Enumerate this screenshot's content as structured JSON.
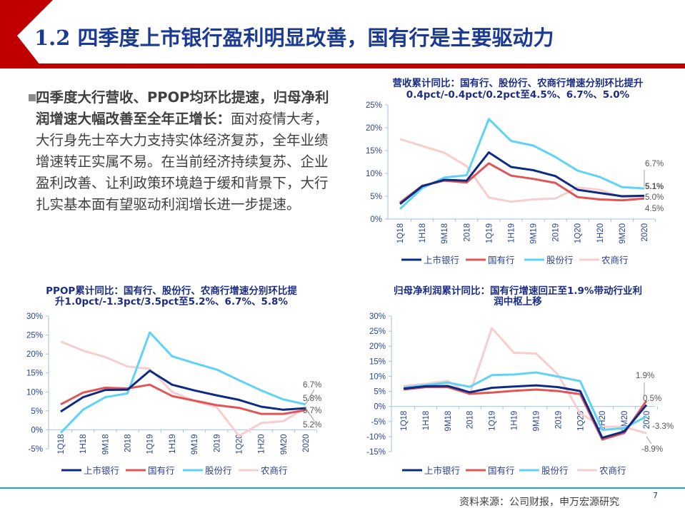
{
  "header": {
    "title": "1.2 四季度上市银行盈利明显改善，国有行是主要驱动力",
    "accent_color": "#c00000"
  },
  "bullet": {
    "bold_text": "四季度大行营收、PPOP均环比提速，归母净利润增速大幅改善至全年正增长：",
    "text": "面对疫情大考，大行身先士卒大力支持实体经济复苏，全年业绩增速转正实属不易。在当前经济持续复苏、企业盈利改善、让利政策环境趋于缓和背景下，大行扎实基本面有望驱动利润增长进一步提速。"
  },
  "footer": {
    "source": "资料来源：公司财报，申万宏源研究",
    "page_number": "7",
    "line_color": "#1aa3e0"
  },
  "chart_data": [
    {
      "type": "line",
      "title": [
        "营收累计同比：国有行、股份行、农商行增速分别环比提升",
        "0.4pct/-0.4pct/0.2pct至4.5%、6.7%、5.0%"
      ],
      "categories": [
        "1Q18",
        "1H18",
        "9M18",
        "2018",
        "1Q19",
        "1H19",
        "9M19",
        "2019",
        "1Q20",
        "1H20",
        "9M20",
        "2020"
      ],
      "ylim": [
        0,
        25
      ],
      "yticks": [
        "0%",
        "5%",
        "10%",
        "15%",
        "20%",
        "25%"
      ],
      "grid": false,
      "legend": "bottom",
      "series": [
        {
          "name": "上市银行",
          "color": "#0d2a85",
          "values": [
            3.3,
            7.2,
            8.6,
            8.4,
            14.6,
            11.4,
            10.7,
            9.4,
            6.4,
            5.7,
            5.0,
            5.1
          ]
        },
        {
          "name": "国有行",
          "color": "#e05555",
          "values": [
            3.6,
            7.3,
            8.4,
            8.0,
            12.2,
            9.5,
            8.8,
            7.9,
            4.8,
            4.3,
            4.1,
            4.5
          ]
        },
        {
          "name": "股份行",
          "color": "#5fd3f5",
          "values": [
            2.2,
            6.8,
            9.1,
            9.6,
            21.9,
            17.1,
            16.1,
            13.6,
            10.6,
            9.2,
            7.0,
            6.7
          ]
        },
        {
          "name": "农商行",
          "color": "#f8cdcd",
          "values": [
            17.5,
            16.0,
            14.5,
            11.6,
            4.7,
            3.8,
            4.3,
            4.5,
            6.9,
            6.4,
            4.8,
            5.0
          ]
        }
      ],
      "annotations": [
        "6.7%",
        "5.1%",
        "5.0%",
        "4.5%"
      ]
    },
    {
      "type": "line",
      "title": [
        "PPOP累计同比：国有行、股份行、农商行增速分别环比提",
        "升1.0pct/-1.3pct/3.5pct至5.2%、6.7%、5.8%"
      ],
      "categories": [
        "1Q18",
        "1H18",
        "9M18",
        "2018",
        "1Q19",
        "1H19",
        "9M19",
        "2019",
        "1Q20",
        "1H20",
        "9M20",
        "2020"
      ],
      "ylim": [
        -5,
        30
      ],
      "yticks": [
        "-5%",
        "0%",
        "5%",
        "10%",
        "15%",
        "20%",
        "25%",
        "30%"
      ],
      "grid": false,
      "legend": "bottom",
      "series": [
        {
          "name": "上市银行",
          "color": "#0d2a85",
          "values": [
            4.8,
            8.6,
            10.5,
            10.6,
            15.6,
            11.9,
            10.4,
            9.1,
            7.9,
            6.1,
            5.3,
            5.7
          ]
        },
        {
          "name": "国有行",
          "color": "#e05555",
          "values": [
            6.7,
            9.8,
            11.1,
            10.9,
            11.9,
            8.9,
            7.7,
            6.5,
            5.8,
            4.2,
            4.2,
            5.2
          ]
        },
        {
          "name": "股份行",
          "color": "#5fd3f5",
          "values": [
            -0.8,
            5.3,
            8.6,
            9.6,
            25.7,
            19.4,
            17.6,
            15.9,
            13.1,
            10.4,
            8.0,
            6.7
          ]
        },
        {
          "name": "农商行",
          "color": "#f8cdcd",
          "values": [
            23.3,
            20.9,
            19.2,
            16.7,
            16.1,
            10.0,
            7.6,
            6.0,
            -1.6,
            1.8,
            2.3,
            5.8
          ]
        }
      ],
      "annotations": [
        "6.7%",
        "5.8%",
        "5.7%",
        "5.2%"
      ]
    },
    {
      "type": "line",
      "title": [
        "归母净利润累计同比：国有行增速回正至1.9%带动行业利",
        "润中枢上移"
      ],
      "categories": [
        "1Q18",
        "1H18",
        "9M18",
        "2018",
        "1Q19",
        "1H19",
        "9M19",
        "2019",
        "1Q20",
        "1H20",
        "9M20",
        "2020"
      ],
      "ylim": [
        -15,
        30
      ],
      "yticks": [
        "-15%",
        "-10%",
        "-5%",
        "0%",
        "5%",
        "10%",
        "15%",
        "20%",
        "25%",
        "30%"
      ],
      "grid": false,
      "legend": "bottom",
      "series": [
        {
          "name": "上市银行",
          "color": "#0d2a85",
          "values": [
            5.9,
            6.7,
            6.8,
            4.7,
            6.2,
            6.6,
            7.0,
            6.4,
            5.1,
            -10.4,
            -8.3,
            0.5
          ]
        },
        {
          "name": "国有行",
          "color": "#e05555",
          "values": [
            5.6,
            6.4,
            6.4,
            4.2,
            4.6,
            5.2,
            5.6,
            5.1,
            4.1,
            -11.0,
            -8.8,
            1.9
          ]
        },
        {
          "name": "股份行",
          "color": "#5fd3f5",
          "values": [
            6.3,
            7.1,
            7.9,
            6.5,
            10.4,
            10.6,
            11.3,
            9.9,
            8.4,
            -7.8,
            -7.2,
            -3.3
          ]
        },
        {
          "name": "农商行",
          "color": "#f8cdcd",
          "values": [
            6.8,
            7.5,
            8.5,
            4.1,
            26.0,
            17.8,
            17.6,
            10.5,
            -2.3,
            -6.7,
            -6.8,
            -8.9
          ]
        }
      ],
      "annotations": [
        "1.9%",
        "0.5%",
        "-3.3%",
        "-8.9%"
      ]
    }
  ]
}
